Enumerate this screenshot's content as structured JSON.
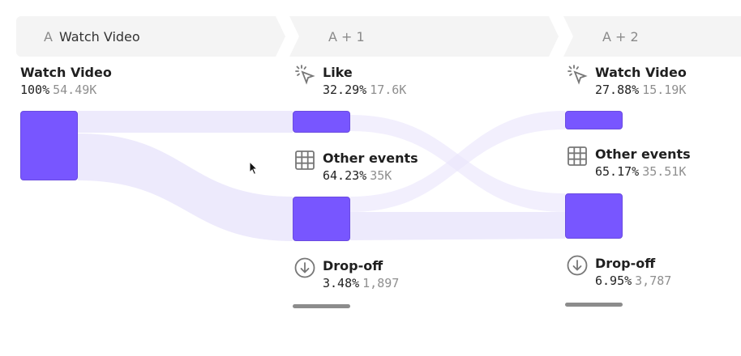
{
  "steps": [
    {
      "letter": "A",
      "label": "Watch Video"
    },
    {
      "letter": "",
      "label": "A + 1"
    },
    {
      "letter": "",
      "label": "A + 2"
    }
  ],
  "nodes": {
    "a_watch": {
      "name": "Watch Video",
      "pct": "100%",
      "count": "54.49K"
    },
    "b_like": {
      "name": "Like",
      "pct": "32.29%",
      "count": "17.6K",
      "icon": "click-cursor-icon"
    },
    "b_other": {
      "name": "Other events",
      "pct": "64.23%",
      "count": "35K",
      "icon": "grid-icon"
    },
    "b_drop": {
      "name": "Drop-off",
      "pct": "3.48%",
      "count": "1,897",
      "icon": "arrow-down-circle-icon"
    },
    "c_watch": {
      "name": "Watch Video",
      "pct": "27.88%",
      "count": "15.19K",
      "icon": "click-cursor-icon"
    },
    "c_other": {
      "name": "Other events",
      "pct": "65.17%",
      "count": "35.51K",
      "icon": "grid-icon"
    },
    "c_drop": {
      "name": "Drop-off",
      "pct": "6.95%",
      "count": "3,787",
      "icon": "arrow-down-circle-icon"
    }
  },
  "colors": {
    "node": "#7856ff",
    "flow": "#ece9fb",
    "dropbar": "#8c8c8c"
  }
}
